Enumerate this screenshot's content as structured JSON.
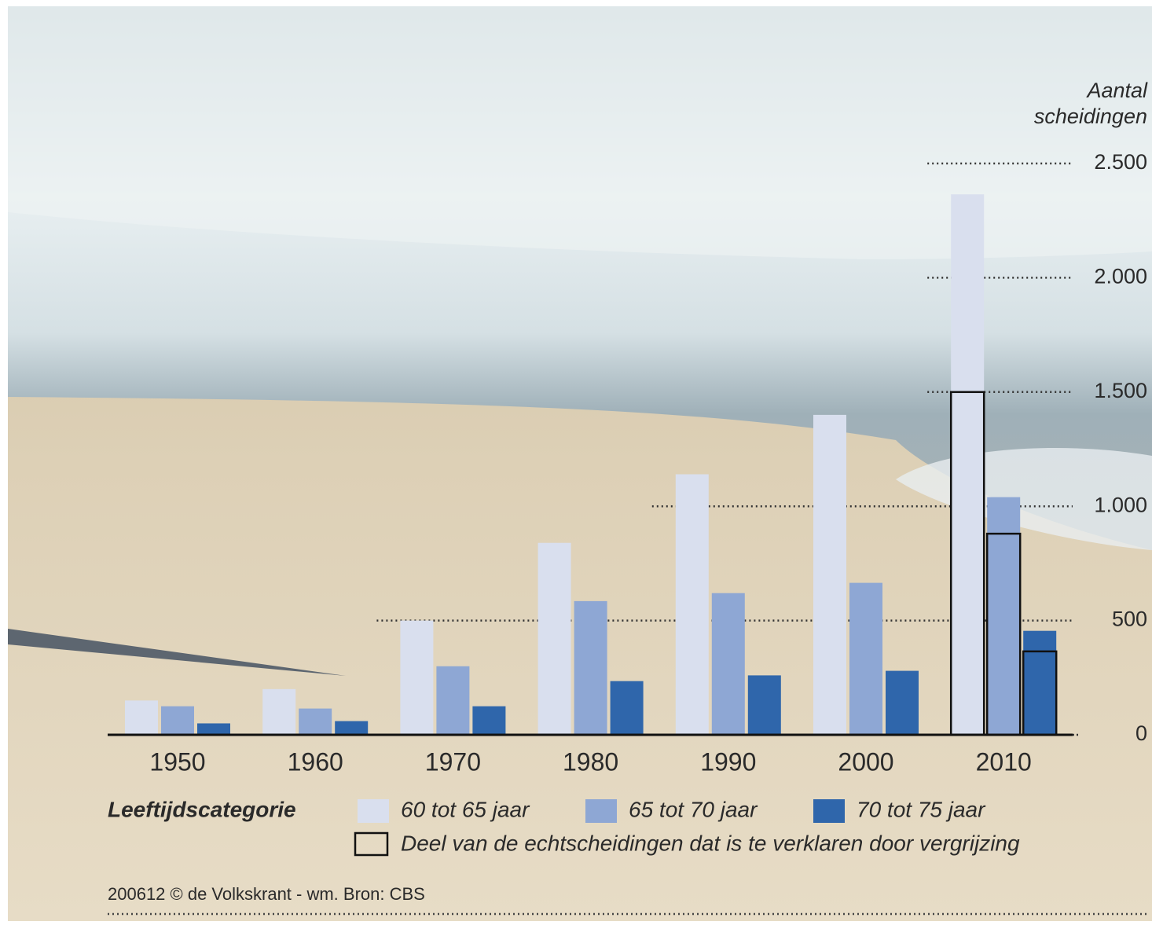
{
  "chart_data": {
    "type": "bar",
    "ylabel": [
      "Aantal",
      "scheidingen"
    ],
    "categories": [
      "1950",
      "1960",
      "1970",
      "1980",
      "1990",
      "2000",
      "2010"
    ],
    "series": [
      {
        "name": "60 tot 65 jaar",
        "color": "#d9dfee",
        "values": [
          150,
          200,
          500,
          840,
          1140,
          1400,
          2365
        ],
        "explained_values": [
          null,
          null,
          null,
          null,
          null,
          null,
          1500
        ]
      },
      {
        "name": "65 tot 70 jaar",
        "color": "#8ea7d4",
        "values": [
          125,
          115,
          300,
          585,
          620,
          665,
          1040
        ],
        "explained_values": [
          null,
          null,
          null,
          null,
          null,
          null,
          880
        ]
      },
      {
        "name": "70 tot 75 jaar",
        "color": "#2f66ab",
        "values": [
          50,
          60,
          125,
          235,
          260,
          280,
          455
        ],
        "explained_values": [
          null,
          null,
          null,
          null,
          null,
          null,
          365
        ]
      }
    ],
    "explained_name": "Deel van de echtscheidingen dat is te verklaren door vergrijzing",
    "legend_title": "Leeftijdscategorie",
    "ylim": [
      0,
      2500
    ],
    "yticks": [
      {
        "value": 0,
        "label": "0"
      },
      {
        "value": 500,
        "label": "500"
      },
      {
        "value": 1000,
        "label": "1.000"
      },
      {
        "value": 1500,
        "label": "1.500"
      },
      {
        "value": 2000,
        "label": "2.000"
      },
      {
        "value": 2500,
        "label": "2.500"
      }
    ],
    "grid": true,
    "source": "200612 © de Volkskrant - wm. Bron: CBS"
  }
}
